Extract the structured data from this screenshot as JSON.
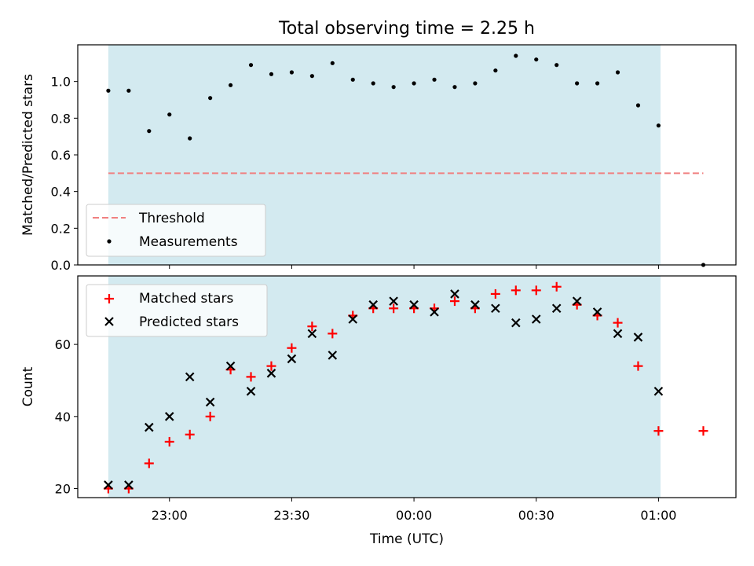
{
  "title": "Total observing time = 2.25 h",
  "colors": {
    "band": "#d3eaf0",
    "threshold": "#f08080",
    "measurement": "#000000",
    "matched": "#ff0000",
    "predicted": "#000000"
  },
  "x_ticks": [
    {
      "t": -60,
      "label": "23:00"
    },
    {
      "t": -30,
      "label": "23:30"
    },
    {
      "t": 0,
      "label": "00:00"
    },
    {
      "t": 30,
      "label": "00:30"
    },
    {
      "t": 60,
      "label": "01:00"
    }
  ],
  "x_range": [
    -82.5,
    79
  ],
  "xlabel": "Time (UTC)",
  "chart_data": [
    {
      "type": "scatter",
      "ylabel": "Matched/Predicted stars",
      "ylim": [
        0,
        1.2
      ],
      "yticks": [
        0.0,
        0.2,
        0.4,
        0.6,
        0.8,
        1.0
      ],
      "ytick_labels": [
        "0.0",
        "0.2",
        "0.4",
        "0.6",
        "0.8",
        "1.0"
      ],
      "band": [
        -75,
        60.5
      ],
      "legend_position": "lower-left",
      "threshold": {
        "name": "Threshold",
        "y": 0.5,
        "x": [
          -75,
          71
        ]
      },
      "series": [
        {
          "name": "Measurements",
          "x": [
            -75,
            -70,
            -65,
            -60,
            -55,
            -50,
            -45,
            -40,
            -35,
            -30,
            -25,
            -20,
            -15,
            -10,
            -5,
            0,
            5,
            10,
            15,
            20,
            25,
            30,
            35,
            40,
            45,
            50,
            55,
            60,
            71
          ],
          "y": [
            0.95,
            0.95,
            0.73,
            0.82,
            0.69,
            0.91,
            0.98,
            1.09,
            1.04,
            1.05,
            1.03,
            1.1,
            1.01,
            0.99,
            0.97,
            0.99,
            1.01,
            0.97,
            0.99,
            1.06,
            1.14,
            1.12,
            1.09,
            0.99,
            0.99,
            1.05,
            0.87,
            0.76,
            0.0
          ]
        }
      ]
    },
    {
      "type": "scatter",
      "ylabel": "Count",
      "ylim": [
        17.5,
        79
      ],
      "yticks": [
        20,
        40,
        60
      ],
      "ytick_labels": [
        "20",
        "40",
        "60"
      ],
      "band": [
        -75,
        60.5
      ],
      "legend_position": "upper-left",
      "series": [
        {
          "name": "Matched stars",
          "marker": "plus",
          "x": [
            -75,
            -70,
            -65,
            -60,
            -55,
            -50,
            -45,
            -40,
            -35,
            -30,
            -25,
            -20,
            -15,
            -10,
            -5,
            0,
            5,
            10,
            15,
            20,
            25,
            30,
            35,
            40,
            45,
            50,
            55,
            60,
            71
          ],
          "y": [
            20,
            20,
            27,
            33,
            35,
            40,
            53,
            51,
            54,
            59,
            65,
            63,
            68,
            70,
            70,
            70,
            70,
            72,
            70,
            74,
            75,
            75,
            76,
            71,
            68,
            66,
            54,
            36,
            36
          ]
        },
        {
          "name": "Predicted stars",
          "marker": "x",
          "x": [
            -75,
            -70,
            -65,
            -60,
            -55,
            -50,
            -45,
            -40,
            -35,
            -30,
            -25,
            -20,
            -15,
            -10,
            -5,
            0,
            5,
            10,
            15,
            20,
            25,
            30,
            35,
            40,
            45,
            50,
            55,
            60
          ],
          "y": [
            21,
            21,
            37,
            40,
            51,
            44,
            54,
            47,
            52,
            56,
            63,
            57,
            67,
            71,
            72,
            71,
            69,
            74,
            71,
            70,
            66,
            67,
            70,
            72,
            69,
            63,
            62,
            47
          ]
        }
      ]
    }
  ]
}
